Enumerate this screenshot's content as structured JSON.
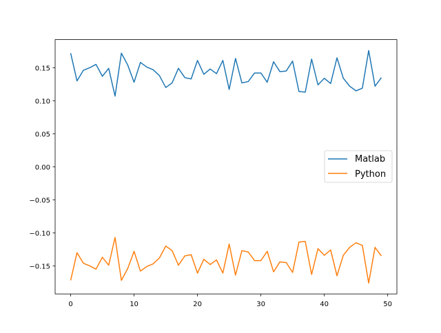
{
  "chart_data": {
    "type": "line",
    "title": "",
    "xlabel": "",
    "ylabel": "",
    "xlim": [
      -2.45,
      51.45
    ],
    "ylim": [
      -0.1925,
      0.1925
    ],
    "grid": false,
    "legend_position": "center right",
    "x": [
      0,
      1,
      2,
      3,
      4,
      5,
      6,
      7,
      8,
      9,
      10,
      11,
      12,
      13,
      14,
      15,
      16,
      17,
      18,
      19,
      20,
      21,
      22,
      23,
      24,
      25,
      26,
      27,
      28,
      29,
      30,
      31,
      32,
      33,
      34,
      35,
      36,
      37,
      38,
      39,
      40,
      41,
      42,
      43,
      44,
      45,
      46,
      47,
      48,
      49
    ],
    "x_ticks": [
      0,
      10,
      20,
      30,
      40,
      50
    ],
    "x_tick_labels": [
      "0",
      "10",
      "20",
      "30",
      "40",
      "50"
    ],
    "y_ticks": [
      0.15,
      0.1,
      0.05,
      0.0,
      -0.05,
      -0.1,
      -0.15
    ],
    "y_tick_labels": [
      "0.15",
      "0.10",
      "0.05",
      "0.00",
      "−0.05",
      "−0.10",
      "−0.15"
    ],
    "series": [
      {
        "name": "Matlab",
        "color": "#1f77b4",
        "values": [
          0.172,
          0.13,
          0.146,
          0.15,
          0.155,
          0.137,
          0.149,
          0.107,
          0.172,
          0.154,
          0.128,
          0.158,
          0.151,
          0.147,
          0.138,
          0.12,
          0.127,
          0.149,
          0.135,
          0.133,
          0.161,
          0.14,
          0.148,
          0.141,
          0.161,
          0.117,
          0.164,
          0.127,
          0.129,
          0.142,
          0.142,
          0.128,
          0.159,
          0.144,
          0.145,
          0.16,
          0.114,
          0.113,
          0.163,
          0.124,
          0.134,
          0.126,
          0.165,
          0.134,
          0.122,
          0.115,
          0.119,
          0.176,
          0.122,
          0.135
        ]
      },
      {
        "name": "Python",
        "color": "#ff7f0e",
        "values": [
          -0.172,
          -0.13,
          -0.146,
          -0.15,
          -0.155,
          -0.137,
          -0.149,
          -0.107,
          -0.172,
          -0.154,
          -0.128,
          -0.158,
          -0.151,
          -0.147,
          -0.138,
          -0.12,
          -0.127,
          -0.149,
          -0.135,
          -0.133,
          -0.161,
          -0.14,
          -0.148,
          -0.141,
          -0.161,
          -0.117,
          -0.164,
          -0.127,
          -0.129,
          -0.142,
          -0.142,
          -0.128,
          -0.159,
          -0.144,
          -0.145,
          -0.16,
          -0.114,
          -0.113,
          -0.163,
          -0.124,
          -0.134,
          -0.126,
          -0.165,
          -0.134,
          -0.122,
          -0.115,
          -0.119,
          -0.176,
          -0.122,
          -0.135
        ]
      }
    ]
  },
  "legend": {
    "items": [
      {
        "label": "Matlab",
        "color": "#1f77b4"
      },
      {
        "label": "Python",
        "color": "#ff7f0e"
      }
    ]
  }
}
